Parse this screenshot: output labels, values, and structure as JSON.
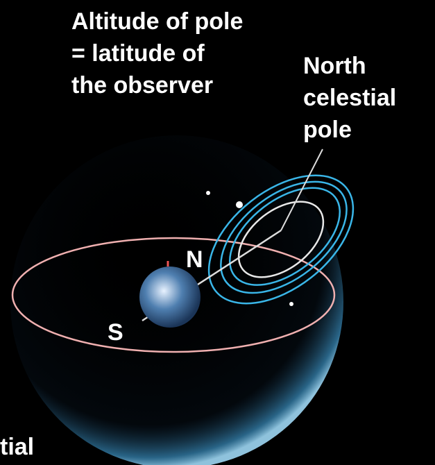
{
  "annotations": {
    "pole_altitude": [
      "Altitude of pole",
      "= latitude of",
      "the observer"
    ],
    "north_celestial_pole": [
      "North",
      "celestial",
      "pole"
    ]
  },
  "labels": {
    "north": "N",
    "south": "S",
    "cut_off": "tial"
  }
}
